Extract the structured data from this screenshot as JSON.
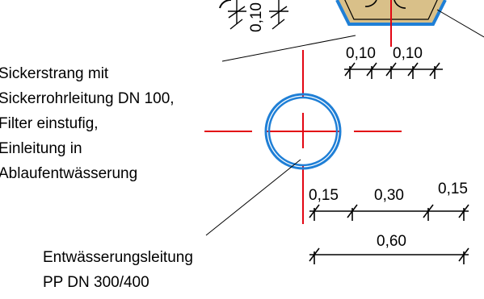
{
  "labels": {
    "sickerstrang": [
      "Sickerstrang mit",
      "Sickerrohrleitung DN 100,",
      "Filter einstufig,",
      "Einleitung in",
      "Ablaufentwässerung"
    ],
    "entwaesserung": [
      "Entwässerungsleitung",
      "PP DN 300/400"
    ]
  },
  "dimensions": {
    "top_left_vertical": "0,10",
    "top_a": "0,10",
    "top_b": "0,10",
    "mid_a": "0,15",
    "mid_b": "0,30",
    "mid_c": "0,15",
    "bottom": "0,60"
  },
  "colors": {
    "centerline": "#e30613",
    "pipe_outline": "#1f7fd6",
    "fill_sand": "#d9c089",
    "line": "#000000"
  }
}
